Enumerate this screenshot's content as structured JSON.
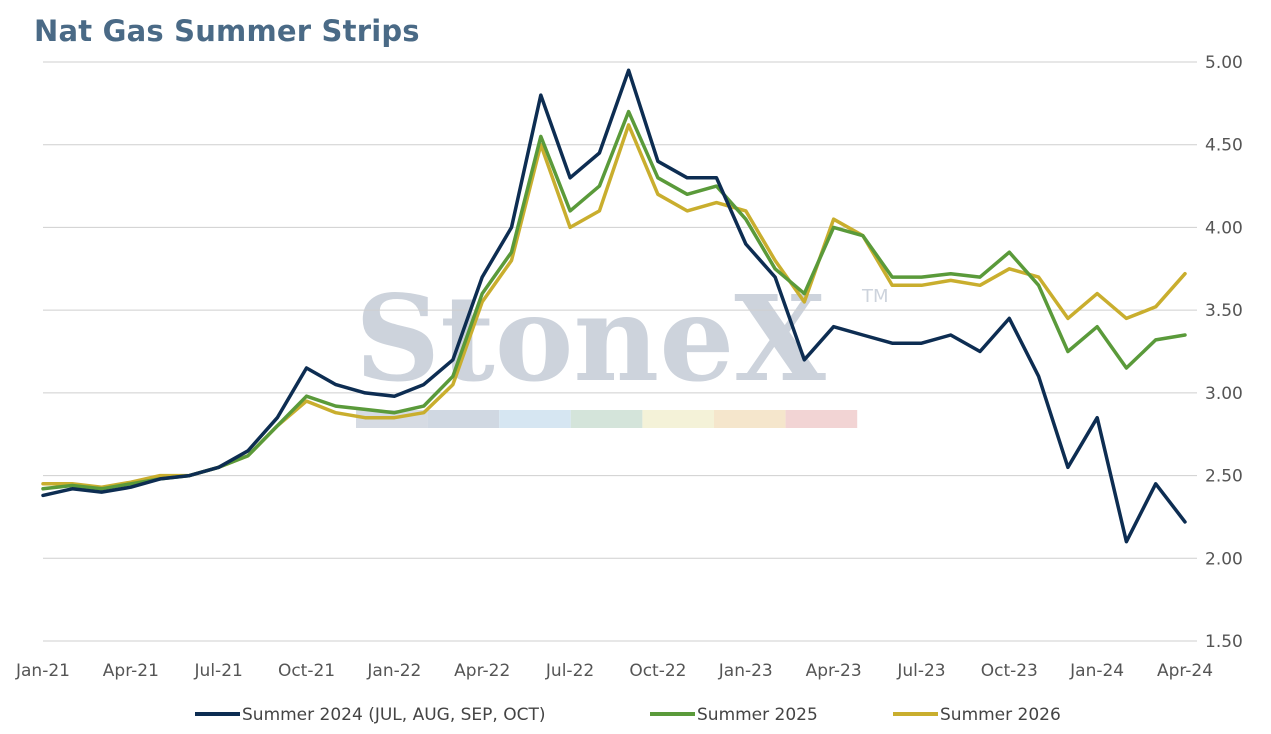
{
  "chart_data": {
    "type": "line",
    "title": "Nat Gas Summer Strips",
    "xlabel": "",
    "ylabel": "",
    "ylim": [
      1.5,
      5.0
    ],
    "yticks": [
      "5.00",
      "4.50",
      "4.00",
      "3.50",
      "3.00",
      "2.50",
      "2.00",
      "1.50"
    ],
    "xticks": [
      "Jan-21",
      "Apr-21",
      "Jul-21",
      "Oct-21",
      "Jan-22",
      "Apr-22",
      "Jul-22",
      "Oct-22",
      "Jan-23",
      "Apr-23",
      "Jul-23",
      "Oct-23",
      "Jan-24",
      "Apr-24"
    ],
    "grid": "horizontal",
    "legend_position": "bottom",
    "watermark": "StoneX",
    "watermark_mark": "TM",
    "series": [
      {
        "name": "Summer 2024 (JUL, AUG, SEP, OCT)",
        "color": "#0d2d52",
        "x": [
          "Jan-21",
          "Feb-21",
          "Mar-21",
          "Apr-21",
          "May-21",
          "Jun-21",
          "Jul-21",
          "Aug-21",
          "Sep-21",
          "Oct-21",
          "Nov-21",
          "Dec-21",
          "Jan-22",
          "Feb-22",
          "Mar-22",
          "Apr-22",
          "May-22",
          "Jun-22",
          "Jul-22",
          "Aug-22",
          "Sep-22",
          "Oct-22",
          "Nov-22",
          "Dec-22",
          "Jan-23",
          "Feb-23",
          "Mar-23",
          "Apr-23",
          "May-23",
          "Jun-23",
          "Jul-23",
          "Aug-23",
          "Sep-23",
          "Oct-23",
          "Nov-23",
          "Dec-23",
          "Jan-24",
          "Feb-24",
          "Mar-24",
          "Apr-24"
        ],
        "y": [
          2.38,
          2.42,
          2.4,
          2.43,
          2.48,
          2.5,
          2.55,
          2.65,
          2.85,
          3.15,
          3.05,
          3.0,
          2.98,
          3.05,
          3.2,
          3.7,
          4.0,
          4.8,
          4.3,
          4.45,
          4.95,
          4.4,
          4.3,
          4.3,
          3.9,
          3.7,
          3.2,
          3.4,
          3.35,
          3.3,
          3.3,
          3.35,
          3.25,
          3.45,
          3.1,
          2.55,
          2.85,
          2.1,
          2.45,
          2.22
        ]
      },
      {
        "name": "Summer 2025",
        "color": "#5a9a3a",
        "x": [
          "Jan-21",
          "Feb-21",
          "Mar-21",
          "Apr-21",
          "May-21",
          "Jun-21",
          "Jul-21",
          "Aug-21",
          "Sep-21",
          "Oct-21",
          "Nov-21",
          "Dec-21",
          "Jan-22",
          "Feb-22",
          "Mar-22",
          "Apr-22",
          "May-22",
          "Jun-22",
          "Jul-22",
          "Aug-22",
          "Sep-22",
          "Oct-22",
          "Nov-22",
          "Dec-22",
          "Jan-23",
          "Feb-23",
          "Mar-23",
          "Apr-23",
          "May-23",
          "Jun-23",
          "Jul-23",
          "Aug-23",
          "Sep-23",
          "Oct-23",
          "Nov-23",
          "Dec-23",
          "Jan-24",
          "Feb-24",
          "Mar-24",
          "Apr-24"
        ],
        "y": [
          2.42,
          2.44,
          2.42,
          2.45,
          2.48,
          2.5,
          2.55,
          2.62,
          2.8,
          2.98,
          2.92,
          2.9,
          2.88,
          2.92,
          3.1,
          3.6,
          3.85,
          4.55,
          4.1,
          4.25,
          4.7,
          4.3,
          4.2,
          4.25,
          4.05,
          3.75,
          3.6,
          4.0,
          3.95,
          3.7,
          3.7,
          3.72,
          3.7,
          3.85,
          3.65,
          3.25,
          3.4,
          3.15,
          3.32,
          3.35
        ]
      },
      {
        "name": "Summer 2026",
        "color": "#c9ae2e",
        "x": [
          "Jan-21",
          "Feb-21",
          "Mar-21",
          "Apr-21",
          "May-21",
          "Jun-21",
          "Jul-21",
          "Aug-21",
          "Sep-21",
          "Oct-21",
          "Nov-21",
          "Dec-21",
          "Jan-22",
          "Feb-22",
          "Mar-22",
          "Apr-22",
          "May-22",
          "Jun-22",
          "Jul-22",
          "Aug-22",
          "Sep-22",
          "Oct-22",
          "Nov-22",
          "Dec-22",
          "Jan-23",
          "Feb-23",
          "Mar-23",
          "Apr-23",
          "May-23",
          "Jun-23",
          "Jul-23",
          "Aug-23",
          "Sep-23",
          "Oct-23",
          "Nov-23",
          "Dec-23",
          "Jan-24",
          "Feb-24",
          "Mar-24",
          "Apr-24"
        ],
        "y": [
          2.45,
          2.45,
          2.43,
          2.46,
          2.5,
          2.5,
          2.55,
          2.62,
          2.8,
          2.95,
          2.88,
          2.85,
          2.85,
          2.88,
          3.05,
          3.55,
          3.8,
          4.5,
          4.0,
          4.1,
          4.62,
          4.2,
          4.1,
          4.15,
          4.1,
          3.8,
          3.55,
          4.05,
          3.95,
          3.65,
          3.65,
          3.68,
          3.65,
          3.75,
          3.7,
          3.45,
          3.6,
          3.45,
          3.52,
          3.72
        ]
      }
    ]
  }
}
